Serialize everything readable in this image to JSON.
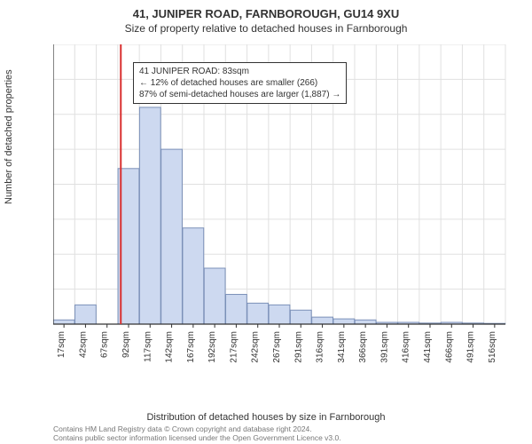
{
  "title_main": "41, JUNIPER ROAD, FARNBOROUGH, GU14 9XU",
  "title_sub": "Size of property relative to detached houses in Farnborough",
  "y_axis_label": "Number of detached properties",
  "x_axis_label": "Distribution of detached houses by size in Farnborough",
  "chart": {
    "type": "histogram",
    "background_color": "#ffffff",
    "grid_color": "#e0e0e0",
    "axis_color": "#333333",
    "bar_fill": "#cdd9f0",
    "bar_stroke": "#7b90b8",
    "marker_line_color": "#d93030",
    "marker_line_x_sqm": 83,
    "ylim": [
      0,
      800
    ],
    "ytick_step": 100,
    "x_labels": [
      "17sqm",
      "42sqm",
      "67sqm",
      "92sqm",
      "117sqm",
      "142sqm",
      "167sqm",
      "192sqm",
      "217sqm",
      "242sqm",
      "267sqm",
      "291sqm",
      "316sqm",
      "341sqm",
      "366sqm",
      "391sqm",
      "416sqm",
      "441sqm",
      "466sqm",
      "491sqm",
      "516sqm"
    ],
    "x_start_sqm": 17,
    "x_step_sqm": 25,
    "bar_width": 0.98,
    "values": [
      12,
      55,
      0,
      445,
      620,
      500,
      275,
      160,
      85,
      60,
      55,
      40,
      20,
      15,
      12,
      5,
      5,
      3,
      5,
      3,
      2
    ],
    "label_fontsize": 11,
    "tick_fontsize": 10,
    "x_tick_rotation": -90
  },
  "annotation": {
    "line1": "41 JUNIPER ROAD: 83sqm",
    "line2": "← 12% of detached houses are smaller (266)",
    "line3": "87% of semi-detached houses are larger (1,887) →",
    "border_color": "#333333",
    "bg_color": "#ffffff",
    "fontsize": 10
  },
  "footer": {
    "line1": "Contains HM Land Registry data © Crown copyright and database right 2024.",
    "line2": "Contains public sector information licensed under the Open Government Licence v3.0."
  }
}
